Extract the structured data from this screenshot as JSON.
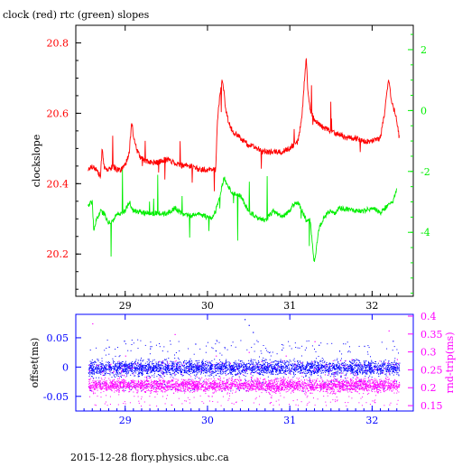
{
  "title": "clock (red) rtc (green) slopes",
  "footer": "2015-12-28 flory.physics.ubc.ca",
  "colors": {
    "red": "#ff0000",
    "green": "#00ee00",
    "blue": "#0000ff",
    "magenta": "#ff00ff",
    "axis": "#000000"
  },
  "chart_data": [
    {
      "type": "line",
      "title": "clock (red) rtc (green) slopes",
      "xlabel": "",
      "ylabel": "clockslope",
      "xlim": [
        28.4,
        32.5
      ],
      "ylim": [
        20.08,
        20.85
      ],
      "y2lim": [
        -6.1,
        2.8
      ],
      "x_ticks": [
        29,
        30,
        31,
        32
      ],
      "y_ticks": [
        20.2,
        20.4,
        20.6,
        20.8
      ],
      "y2_ticks": [
        -4,
        -2,
        0,
        2
      ],
      "grid": false,
      "series": [
        {
          "name": "clock",
          "color": "red",
          "axis": "left",
          "x": [
            28.55,
            28.6,
            28.65,
            28.7,
            28.72,
            28.75,
            28.8,
            28.85,
            28.9,
            28.95,
            29.0,
            29.05,
            29.08,
            29.1,
            29.15,
            29.2,
            29.3,
            29.4,
            29.5,
            29.6,
            29.7,
            29.8,
            29.9,
            30.0,
            30.1,
            30.12,
            30.15,
            30.18,
            30.2,
            30.22,
            30.25,
            30.3,
            30.4,
            30.5,
            30.6,
            30.7,
            30.8,
            30.9,
            31.0,
            31.1,
            31.15,
            31.18,
            31.2,
            31.22,
            31.25,
            31.3,
            31.4,
            31.5,
            31.6,
            31.7,
            31.8,
            31.9,
            32.0,
            32.1,
            32.15,
            32.2,
            32.22,
            32.25,
            32.28,
            32.3,
            32.33
          ],
          "y": [
            20.44,
            20.45,
            20.44,
            20.42,
            20.5,
            20.44,
            20.44,
            20.45,
            20.44,
            20.44,
            20.45,
            20.49,
            20.58,
            20.53,
            20.49,
            20.47,
            20.46,
            20.46,
            20.47,
            20.46,
            20.45,
            20.45,
            20.44,
            20.44,
            20.44,
            20.58,
            20.65,
            20.7,
            20.66,
            20.61,
            20.58,
            20.55,
            20.53,
            20.51,
            20.5,
            20.49,
            20.49,
            20.49,
            20.5,
            20.52,
            20.6,
            20.7,
            20.76,
            20.66,
            20.61,
            20.58,
            20.56,
            20.55,
            20.54,
            20.53,
            20.53,
            20.52,
            20.52,
            20.53,
            20.6,
            20.7,
            20.66,
            20.62,
            20.6,
            20.58,
            20.53
          ]
        },
        {
          "name": "rtc",
          "color": "green",
          "axis": "right",
          "x": [
            28.55,
            28.6,
            28.62,
            28.65,
            28.7,
            28.75,
            28.8,
            28.85,
            28.9,
            28.95,
            29.0,
            29.05,
            29.1,
            29.2,
            29.3,
            29.4,
            29.5,
            29.6,
            29.7,
            29.8,
            29.9,
            30.0,
            30.05,
            30.1,
            30.15,
            30.2,
            30.25,
            30.3,
            30.4,
            30.5,
            30.6,
            30.7,
            30.8,
            30.9,
            31.0,
            31.05,
            31.1,
            31.15,
            31.2,
            31.25,
            31.28,
            31.3,
            31.35,
            31.4,
            31.45,
            31.5,
            31.55,
            31.6,
            31.7,
            31.8,
            31.9,
            32.0,
            32.1,
            32.2,
            32.25,
            32.3
          ],
          "y": [
            -3.1,
            -3.0,
            -4.0,
            -3.6,
            -3.3,
            -3.4,
            -3.7,
            -3.6,
            -3.4,
            -3.35,
            -3.3,
            -3.0,
            -3.3,
            -3.35,
            -3.4,
            -3.35,
            -3.4,
            -3.2,
            -3.4,
            -3.45,
            -3.4,
            -3.5,
            -3.55,
            -3.3,
            -2.8,
            -2.2,
            -2.5,
            -2.7,
            -2.8,
            -3.3,
            -3.5,
            -3.6,
            -3.3,
            -3.5,
            -3.3,
            -3.1,
            -3.0,
            -3.3,
            -3.6,
            -3.6,
            -4.6,
            -5.0,
            -3.9,
            -3.6,
            -3.4,
            -3.3,
            -3.4,
            -3.2,
            -3.25,
            -3.3,
            -3.3,
            -3.2,
            -3.35,
            -3.1,
            -3.0,
            -2.6
          ]
        }
      ]
    },
    {
      "type": "scatter",
      "xlabel": "",
      "ylabel": "offset(ms)",
      "y2label": "rnd-trip(ms)",
      "xlim": [
        28.4,
        32.5
      ],
      "ylim": [
        -0.075,
        0.09
      ],
      "y2lim": [
        0.135,
        0.405
      ],
      "x_ticks": [
        29,
        30,
        31,
        32
      ],
      "y_ticks": [
        -0.05,
        0,
        0.05
      ],
      "y2_ticks": [
        0.15,
        0.2,
        0.25,
        0.3,
        0.35,
        0.4
      ],
      "grid": false,
      "series": [
        {
          "name": "offset",
          "color": "blue",
          "axis": "left",
          "x_range": [
            28.55,
            32.33
          ],
          "y_band": [
            -0.02,
            0.018
          ],
          "outliers_x": [
            28.8,
            29.3,
            29.85,
            30.45,
            30.5,
            30.55,
            30.9,
            31.35,
            31.6,
            32.25
          ],
          "outliers_y": [
            0.035,
            0.032,
            0.04,
            0.082,
            0.072,
            0.06,
            0.03,
            0.038,
            0.028,
            0.045
          ]
        },
        {
          "name": "rnd-trip",
          "color": "magenta",
          "axis": "right",
          "x_range": [
            28.55,
            32.33
          ],
          "y_band": [
            0.18,
            0.235
          ],
          "outliers_x": [
            28.6,
            29.0,
            29.6,
            30.1,
            30.5,
            30.95,
            31.3,
            31.75,
            32.2,
            32.3
          ],
          "outliers_y": [
            0.38,
            0.29,
            0.35,
            0.29,
            0.3,
            0.29,
            0.33,
            0.28,
            0.36,
            0.28
          ]
        }
      ]
    }
  ]
}
